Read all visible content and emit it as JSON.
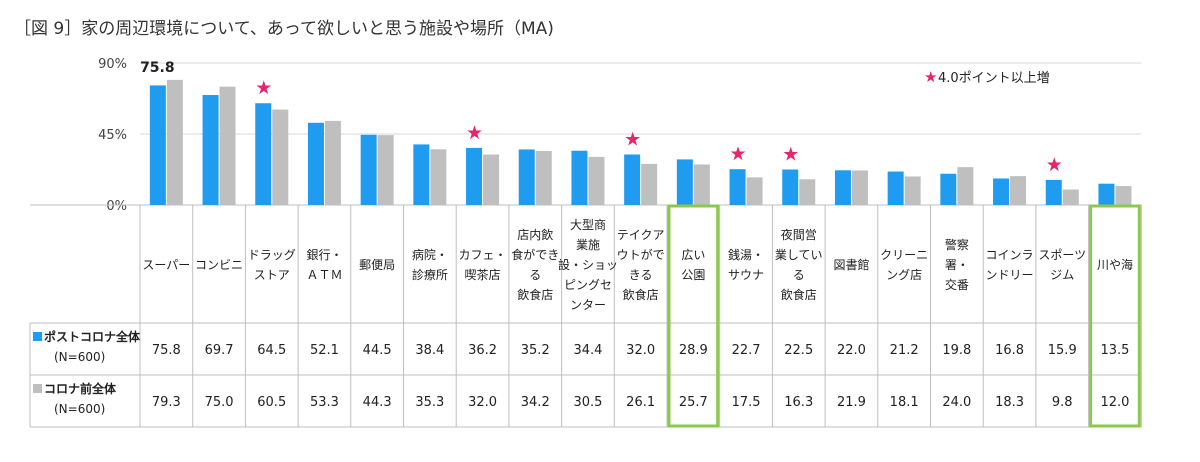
{
  "title": "［図 9］家の周辺環境について、あって欲しいと思う施設や場所（MA)",
  "chart_data": {
    "type": "bar",
    "ylim": [
      0,
      90
    ],
    "yticks": [
      "0%",
      "45%",
      "90%"
    ],
    "grid": true,
    "top_label": "75.8",
    "legend_star_text": "4.0ポイント以上増",
    "categories": [
      [
        "スーパー"
      ],
      [
        "コンビニ"
      ],
      [
        "ドラッグ",
        "ストア"
      ],
      [
        "銀行・",
        "ＡＴＭ"
      ],
      [
        "郵便局"
      ],
      [
        "病院・",
        "診療所"
      ],
      [
        "カフェ・",
        "喫茶店"
      ],
      [
        "店内飲",
        "食ができ",
        "る",
        "飲食店"
      ],
      [
        "大型商",
        "業施",
        "設・ショッ",
        "ピングセ",
        "ンター"
      ],
      [
        "テイクア",
        "ウトがで",
        "きる",
        "飲食店"
      ],
      [
        "広い",
        "公園"
      ],
      [
        "銭湯・",
        "サウナ"
      ],
      [
        "夜間営",
        "業してい",
        "る",
        "飲食店"
      ],
      [
        "図書館"
      ],
      [
        "クリーニ",
        "ング店"
      ],
      [
        "警察",
        "署・",
        "交番"
      ],
      [
        "コインラ",
        "ンドリー"
      ],
      [
        "スポーツ",
        "ジム"
      ],
      [
        "川や海"
      ]
    ],
    "series": [
      {
        "name": "ポストコロナ全体",
        "subname": "(N=600)",
        "color": "#1f9cf0",
        "values": [
          75.8,
          69.7,
          64.5,
          52.1,
          44.5,
          38.4,
          36.2,
          35.2,
          34.4,
          32.0,
          28.9,
          22.7,
          22.5,
          22.0,
          21.2,
          19.8,
          16.8,
          15.9,
          13.5
        ],
        "labels": [
          "75.8",
          "69.7",
          "64.5",
          "52.1",
          "44.5",
          "38.4",
          "36.2",
          "35.2",
          "34.4",
          "32.0",
          "28.9",
          "22.7",
          "22.5",
          "22.0",
          "21.2",
          "19.8",
          "16.8",
          "15.9",
          "13.5"
        ]
      },
      {
        "name": "コロナ前全体",
        "subname": "(N=600)",
        "color": "#bfbfbf",
        "values": [
          79.3,
          75.0,
          60.5,
          53.3,
          44.3,
          35.3,
          32.0,
          34.2,
          30.5,
          26.1,
          25.7,
          17.5,
          16.3,
          21.9,
          18.1,
          24.0,
          18.3,
          9.8,
          12.0
        ],
        "labels": [
          "79.3",
          "75.0",
          "60.5",
          "53.3",
          "44.3",
          "35.3",
          "32.0",
          "34.2",
          "30.5",
          "26.1",
          "25.7",
          "17.5",
          "16.3",
          "21.9",
          "18.1",
          "24.0",
          "18.3",
          "9.8",
          "12.0"
        ]
      }
    ],
    "starred_indices": [
      2,
      6,
      9,
      11,
      12,
      17
    ],
    "highlighted_indices": [
      10,
      18
    ],
    "star_color": "#e8246e",
    "highlight_color": "#8cc84b"
  }
}
